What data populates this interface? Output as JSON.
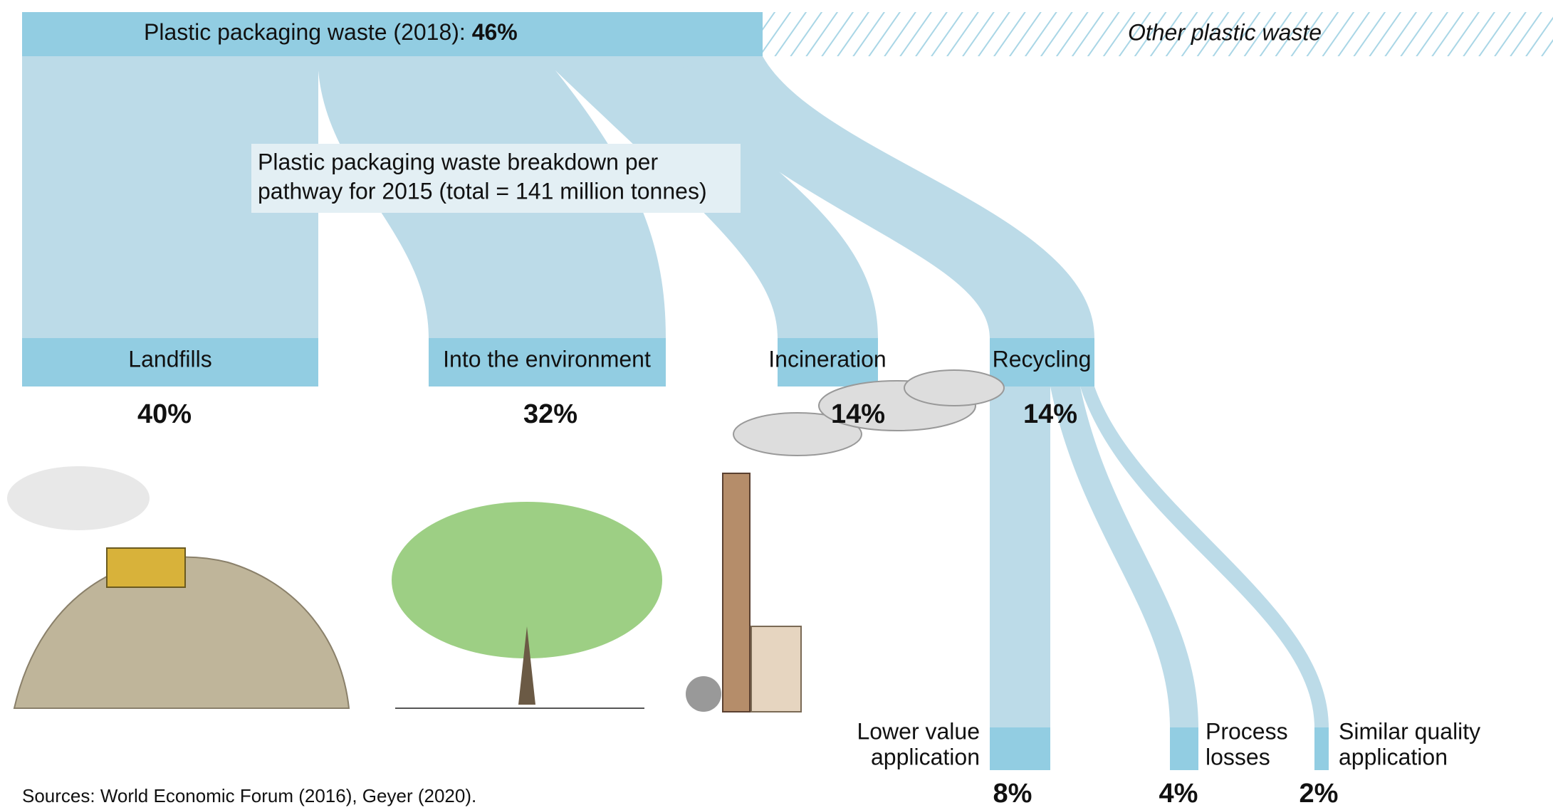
{
  "header": {
    "title": "Plastic packaging waste (2018): ",
    "share": "46%",
    "other": "Other plastic waste"
  },
  "subtitle": [
    "Plastic packaging waste breakdown per",
    "pathway for 2015 (total = 141 million tonnes)"
  ],
  "pathways": [
    {
      "label": "Landfills",
      "share": "40%"
    },
    {
      "label": "Into the environment",
      "share": "32%"
    },
    {
      "label": "Incineration",
      "share": "14%"
    },
    {
      "label": "Recycling",
      "share": "14%"
    }
  ],
  "recycling_outcomes": [
    {
      "label": [
        "Lower value",
        "application"
      ],
      "share": "8%"
    },
    {
      "label": [
        "Process",
        "losses"
      ],
      "share": "4%"
    },
    {
      "label": [
        "Similar quality",
        "application"
      ],
      "share": "2%"
    }
  ],
  "sources": "Sources: World Economic Forum (2016), Geyer (2020)."
}
